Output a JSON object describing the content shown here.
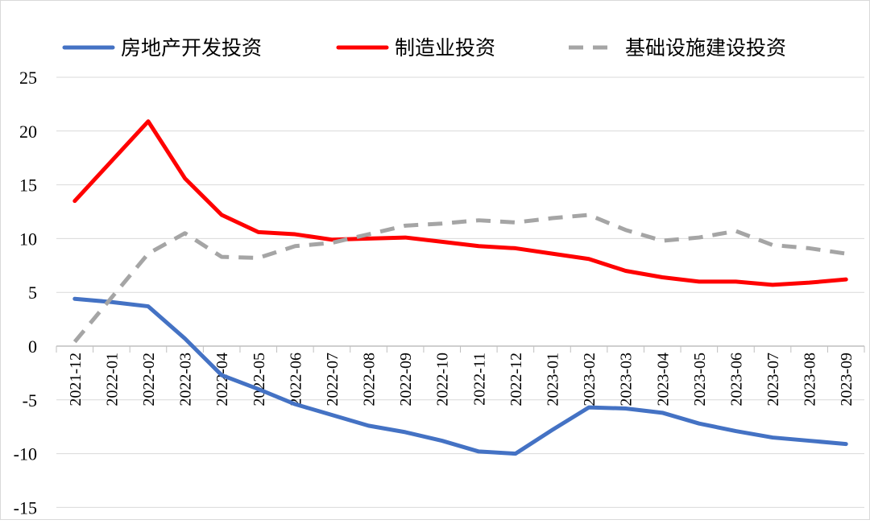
{
  "chart_data": {
    "type": "line",
    "title": "",
    "xlabel": "",
    "ylabel": "",
    "ylim": [
      -15,
      25
    ],
    "yticks": [
      25,
      20,
      15,
      10,
      5,
      0,
      -5,
      -10,
      -15
    ],
    "grid": true,
    "legend_position": "top",
    "categories": [
      "2021-12",
      "2022-01",
      "2022-02",
      "2022-03",
      "2022-04",
      "2022-05",
      "2022-06",
      "2022-07",
      "2022-08",
      "2022-09",
      "2022-10",
      "2022-11",
      "2022-12",
      "2023-01",
      "2023-02",
      "2023-03",
      "2023-04",
      "2023-05",
      "2023-06",
      "2023-07",
      "2023-08",
      "2023-09"
    ],
    "series": [
      {
        "name": "房地产开发投资",
        "color": "#4472C4",
        "dash": false,
        "values": [
          4.4,
          4.1,
          3.7,
          0.7,
          -2.7,
          -4.0,
          -5.4,
          -6.4,
          -7.4,
          -8.0,
          -8.8,
          -9.8,
          -10.0,
          -7.8,
          -5.7,
          -5.8,
          -6.2,
          -7.2,
          -7.9,
          -8.5,
          -8.8,
          -9.1
        ]
      },
      {
        "name": "制造业投资",
        "color": "#FF0000",
        "dash": false,
        "values": [
          13.5,
          17.2,
          20.9,
          15.6,
          12.2,
          10.6,
          10.4,
          9.9,
          10.0,
          10.1,
          9.7,
          9.3,
          9.1,
          8.6,
          8.1,
          7.0,
          6.4,
          6.0,
          6.0,
          5.7,
          5.9,
          6.2
        ]
      },
      {
        "name": "基础设施建设投资",
        "color": "#A5A5A5",
        "dash": true,
        "values": [
          0.4,
          4.5,
          8.6,
          10.5,
          8.3,
          8.2,
          9.3,
          9.6,
          10.4,
          11.2,
          11.4,
          11.7,
          11.5,
          11.9,
          12.2,
          10.8,
          9.8,
          10.1,
          10.7,
          9.4,
          9.1,
          8.6
        ]
      }
    ]
  }
}
